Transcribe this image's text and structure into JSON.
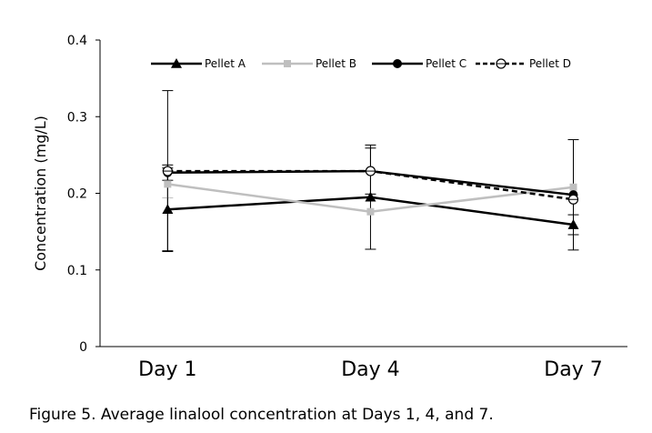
{
  "caption": "Figure 5. Average linalool concentration at Days 1, 4, and 7.",
  "chart_data": {
    "type": "line",
    "title": "",
    "xlabel": "",
    "ylabel": "Concentration (mg/L)",
    "categories": [
      "Day 1",
      "Day 4",
      "Day 7"
    ],
    "x": [
      1,
      4,
      7
    ],
    "xlim": [
      0,
      7.8
    ],
    "ylim": [
      0,
      0.4
    ],
    "yticks": [
      0,
      0.1,
      0.2,
      0.3,
      0.4
    ],
    "ytick_labels": [
      "0",
      "0.1",
      "0.2",
      "0.3",
      "0.4"
    ],
    "grid": false,
    "legend": "top",
    "series": [
      {
        "name": "Pellet A",
        "color": "#000000",
        "dash": "solid",
        "marker": "triangle",
        "values": [
          0.179,
          0.195,
          0.159
        ],
        "error": [
          0.054,
          0.068,
          0.013
        ]
      },
      {
        "name": "Pellet B",
        "color": "#bfbfbf",
        "dash": "solid",
        "marker": "square",
        "values": [
          0.212,
          0.176,
          0.208
        ],
        "error": [
          0.018,
          0.0,
          0.0
        ]
      },
      {
        "name": "Pellet C",
        "color": "#000000",
        "dash": "solid",
        "marker": "circle",
        "values": [
          0.227,
          0.229,
          0.198
        ],
        "error": [
          0.01,
          0.03,
          0.072
        ]
      },
      {
        "name": "Pellet D",
        "color": "#000000",
        "dash": "dashed",
        "marker": "open-circle",
        "values": [
          0.229,
          0.229,
          0.192
        ],
        "error": [
          0.105,
          0.0,
          0.0
        ]
      }
    ]
  }
}
